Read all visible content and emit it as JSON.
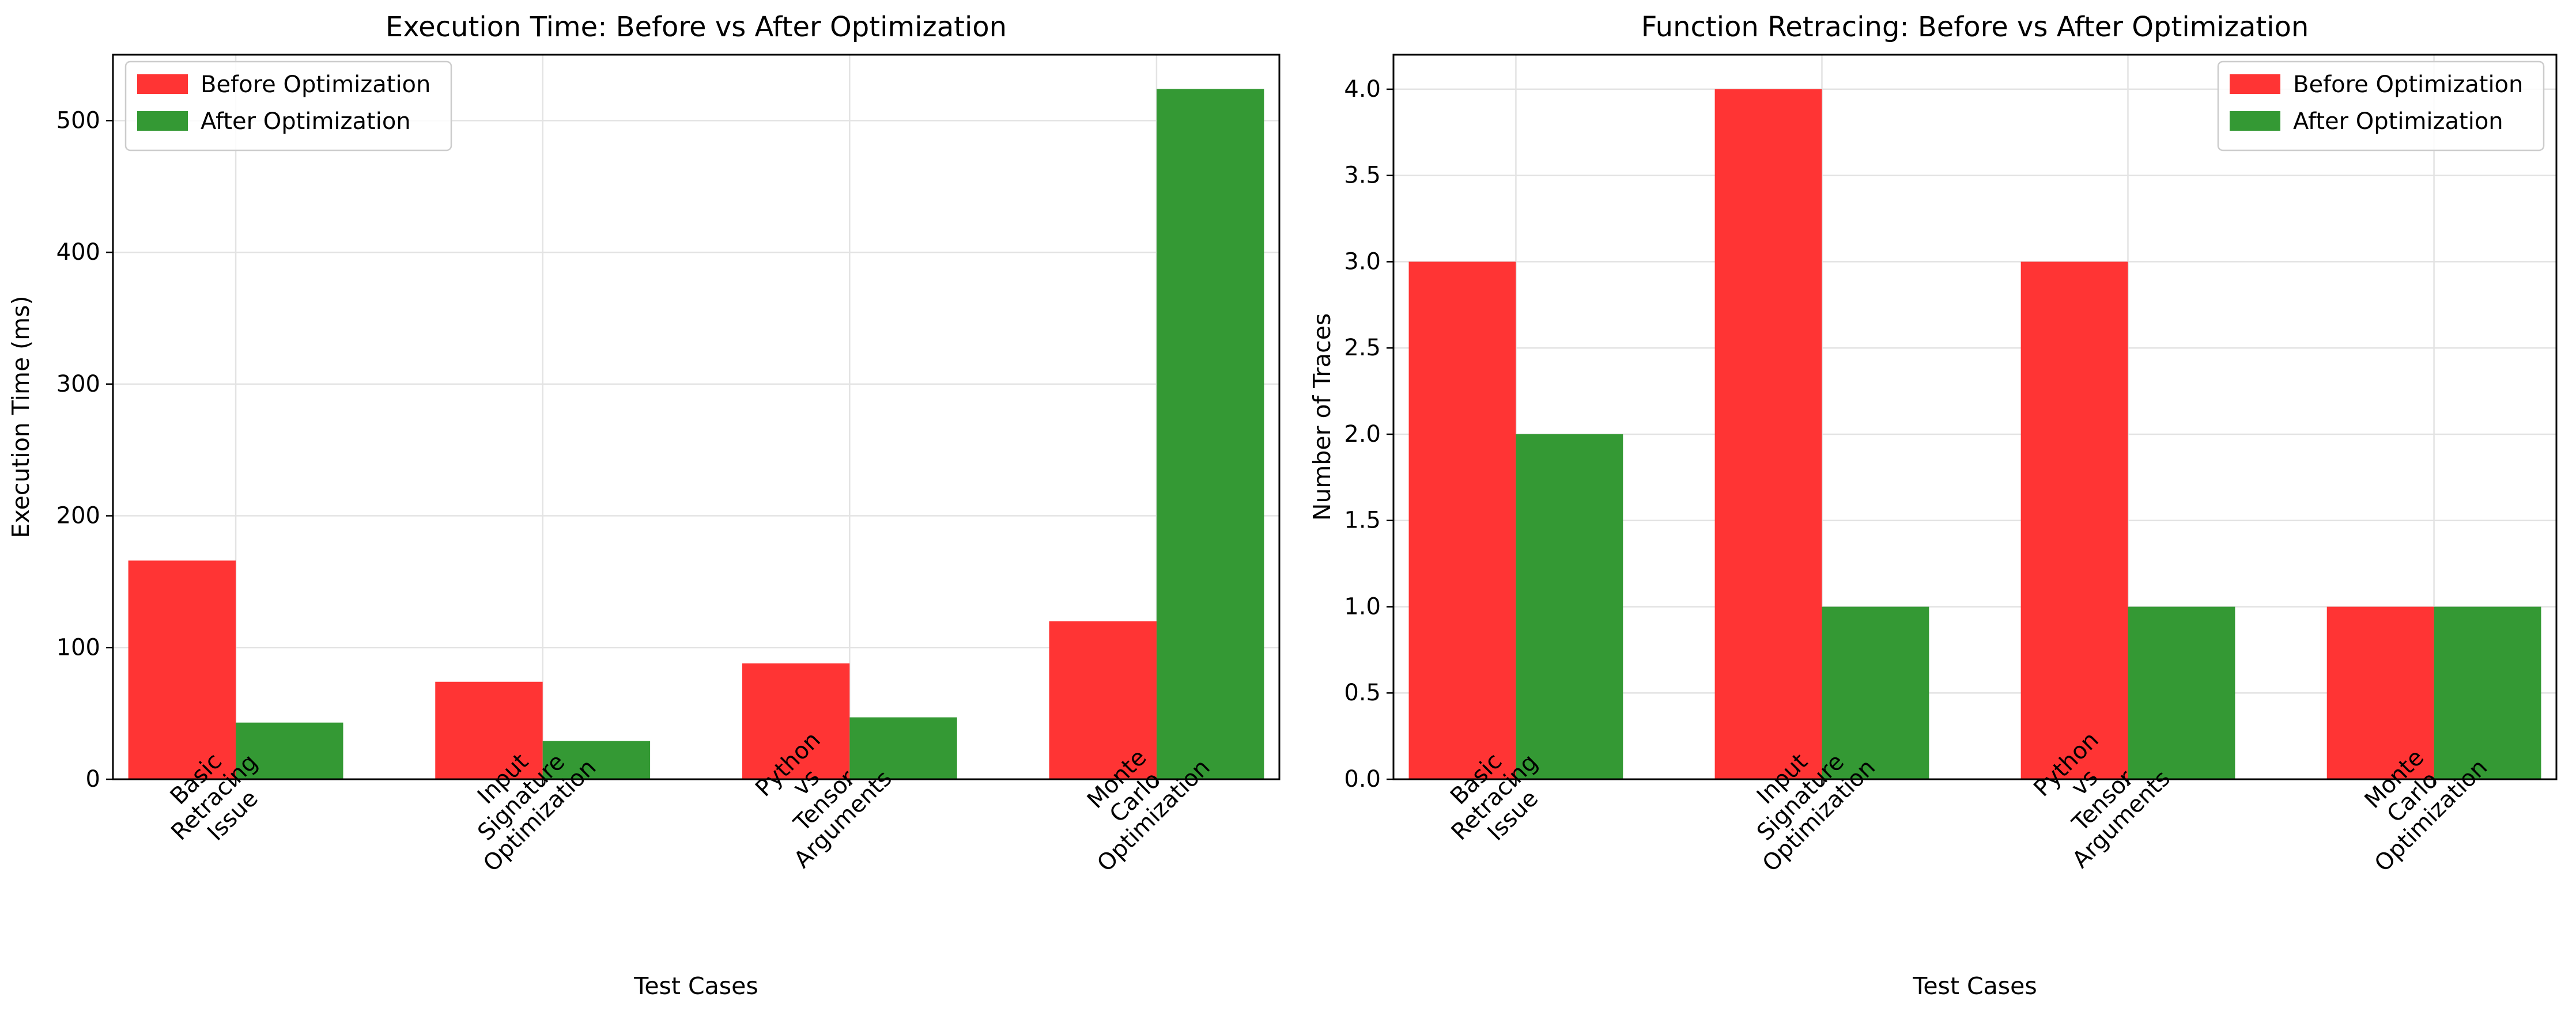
{
  "chart_data": [
    {
      "type": "bar",
      "title": "Execution Time: Before vs After Optimization",
      "xlabel": "Test Cases",
      "ylabel": "Execution Time (ms)",
      "categories": [
        "Basic\nRetracing\nIssue",
        "Input\nSignature\nOptimization",
        "Python\nvs\nTensor\nArguments",
        "Monte\nCarlo\nOptimization"
      ],
      "series": [
        {
          "name": "Before Optimization",
          "color": "#ff3434",
          "values": [
            166,
            74,
            88,
            120
          ]
        },
        {
          "name": "After Optimization",
          "color": "#349934",
          "values": [
            43,
            29,
            47,
            524
          ]
        }
      ],
      "ylim": [
        0,
        550
      ],
      "yticks": [
        0,
        100,
        200,
        300,
        400,
        500
      ],
      "ytick_labels": [
        "0",
        "100",
        "200",
        "300",
        "400",
        "500"
      ],
      "grid": true,
      "legend_position": "upper-left"
    },
    {
      "type": "bar",
      "title": "Function Retracing: Before vs After Optimization",
      "xlabel": "Test Cases",
      "ylabel": "Number of Traces",
      "categories": [
        "Basic\nRetracing\nIssue",
        "Input\nSignature\nOptimization",
        "Python\nvs\nTensor\nArguments",
        "Monte\nCarlo\nOptimization"
      ],
      "series": [
        {
          "name": "Before Optimization",
          "color": "#ff3434",
          "values": [
            3,
            4,
            3,
            1
          ]
        },
        {
          "name": "After Optimization",
          "color": "#349934",
          "values": [
            2,
            1,
            1,
            1
          ]
        }
      ],
      "ylim": [
        0,
        4.2
      ],
      "yticks": [
        0,
        0.5,
        1,
        1.5,
        2,
        2.5,
        3,
        3.5,
        4
      ],
      "ytick_labels": [
        "0.0",
        "0.5",
        "1.0",
        "1.5",
        "2.0",
        "2.5",
        "3.0",
        "3.5",
        "4.0"
      ],
      "grid": true,
      "legend_position": "upper-right"
    }
  ]
}
